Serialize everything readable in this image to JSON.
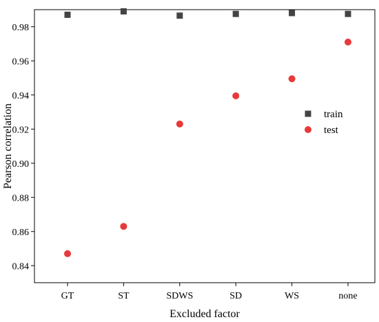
{
  "chart_data": {
    "type": "scatter",
    "title": "",
    "xlabel": "Excluded factor",
    "ylabel": "Pearson correlation",
    "categories": [
      "GT",
      "ST",
      "SDWS",
      "SD",
      "WS",
      "none"
    ],
    "ylim": [
      0.83,
      0.99
    ],
    "yticks": [
      0.84,
      0.86,
      0.88,
      0.9,
      0.92,
      0.94,
      0.96,
      0.98
    ],
    "ytick_labels": [
      "0.84",
      "0.86",
      "0.88",
      "0.90",
      "0.92",
      "0.94",
      "0.96",
      "0.98"
    ],
    "grid": false,
    "legend_position": "right",
    "series": [
      {
        "name": "train",
        "marker": "square",
        "color": "#444444",
        "values": [
          0.987,
          0.989,
          0.9865,
          0.9875,
          0.988,
          0.9875
        ]
      },
      {
        "name": "test",
        "marker": "circle",
        "color": "#e8393b",
        "values": [
          0.847,
          0.863,
          0.923,
          0.9395,
          0.9495,
          0.971
        ]
      }
    ]
  }
}
